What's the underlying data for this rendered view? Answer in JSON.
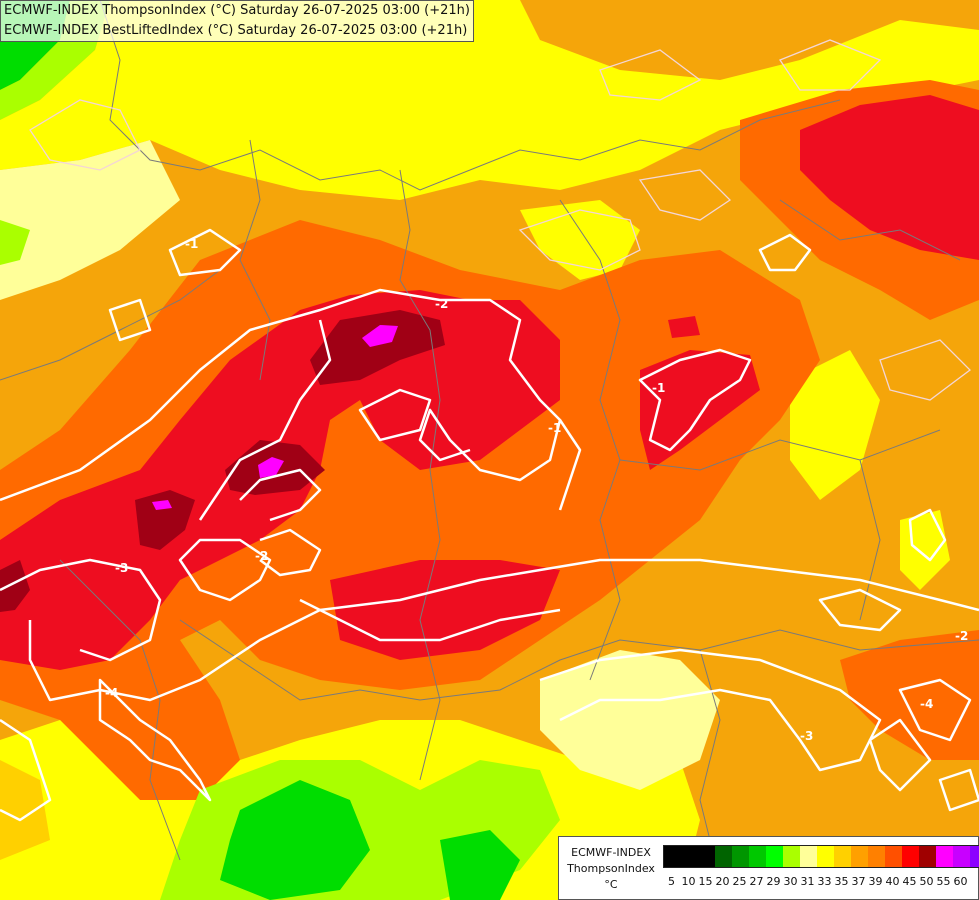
{
  "header": {
    "line1": "ECMWF-INDEX ThompsonIndex (°C) Saturday 26-07-2025 03:00 (+21h)",
    "line2": "ECMWF-INDEX BestLiftedIndex (°C) Saturday 26-07-2025 03:00 (+21h)"
  },
  "colors": {
    "background": "#e8a020",
    "light_yellow": "#ffff99",
    "yellow": "#ffff00",
    "gold": "#ffd000",
    "orange": "#f5a50a",
    "dark_orange": "#ff6a00",
    "red": "#ee0d20",
    "dark_red": "#a00015",
    "magenta": "#ff00ff",
    "lime": "#aaff00",
    "green": "#00dd00",
    "contour": "#ffffff",
    "border": "#7a7a7a"
  },
  "contours": {
    "labels": [
      "-1",
      "-2",
      "-2",
      "-3",
      "-4",
      "-1",
      "-1",
      "-2",
      "-3",
      "-4"
    ]
  },
  "legend": {
    "name_line1": "ECMWF-INDEX",
    "name_line2": "ThompsonIndex",
    "unit": "°C",
    "swatch_colors": [
      "#000000",
      "#000000",
      "#000000",
      "#006400",
      "#009600",
      "#00c800",
      "#00ff00",
      "#aaff00",
      "#ffff99",
      "#ffff00",
      "#ffd000",
      "#ffa000",
      "#ff8000",
      "#ff5000",
      "#ff0000",
      "#a00000",
      "#ff00ff",
      "#c800ff",
      "#8c00ff",
      "#0000ff"
    ],
    "ticks": [
      "5",
      "10",
      "15",
      "20",
      "25",
      "27",
      "29",
      "30",
      "31",
      "33",
      "35",
      "37",
      "39",
      "40",
      "45",
      "50",
      "55",
      "60"
    ]
  }
}
